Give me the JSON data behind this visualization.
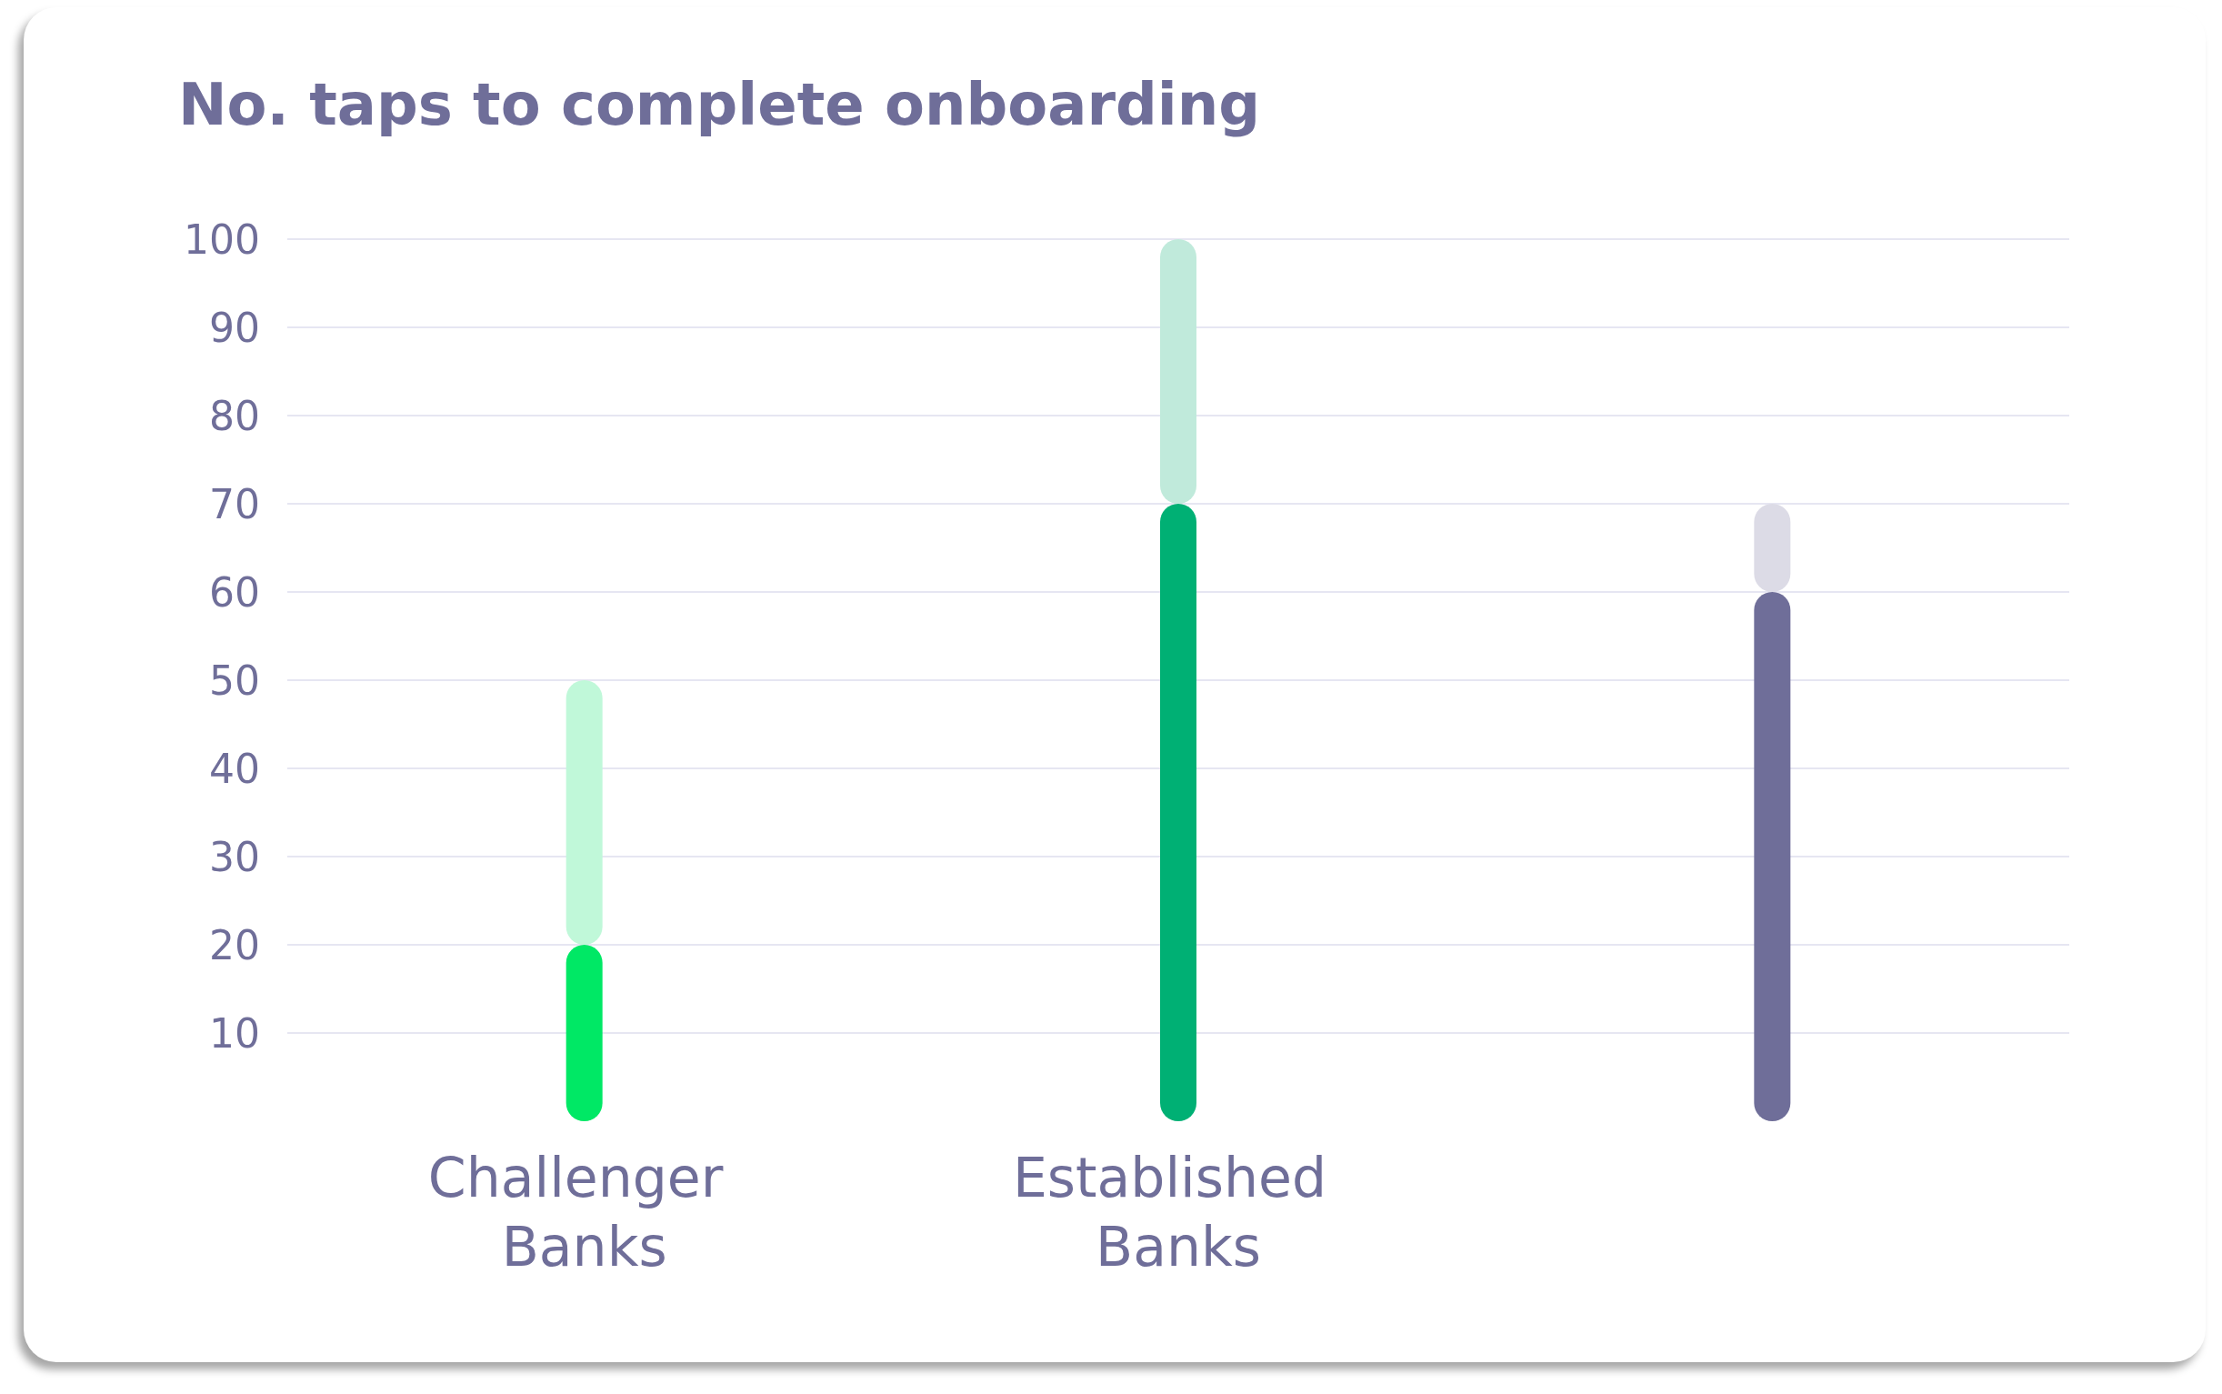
{
  "chart_data": {
    "type": "bar",
    "title": "No. taps to complete onboarding",
    "categories": [
      "Challenger Banks",
      "Established Banks",
      null
    ],
    "stacked": true,
    "series": [
      {
        "colors": [
          "#00e865",
          "#00b074",
          "#6f6e99"
        ],
        "values": [
          20,
          70,
          60
        ]
      },
      {
        "colors": [
          "#c0f8d9",
          "#c0eadb",
          "#dcdbe6"
        ],
        "values": [
          30,
          30,
          10
        ]
      }
    ],
    "ylim": [
      0,
      100
    ],
    "yticks": [
      10,
      20,
      30,
      40,
      50,
      60,
      70,
      80,
      90,
      100
    ],
    "grid": "y"
  }
}
